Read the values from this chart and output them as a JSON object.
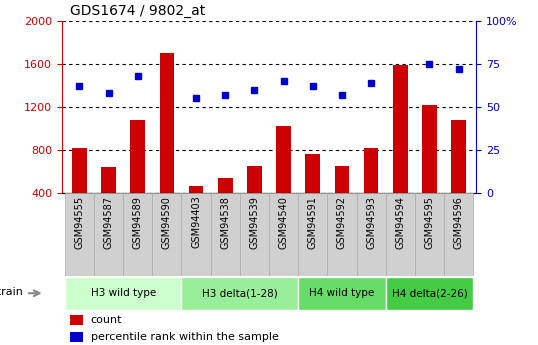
{
  "title": "GDS1674 / 9802_at",
  "samples": [
    "GSM94555",
    "GSM94587",
    "GSM94589",
    "GSM94590",
    "GSM94403",
    "GSM94538",
    "GSM94539",
    "GSM94540",
    "GSM94591",
    "GSM94592",
    "GSM94593",
    "GSM94594",
    "GSM94595",
    "GSM94596"
  ],
  "counts": [
    820,
    640,
    1080,
    1700,
    470,
    540,
    650,
    1020,
    760,
    650,
    820,
    1590,
    1220,
    1080
  ],
  "pct_right": [
    62,
    58,
    68,
    null,
    55,
    57,
    60,
    65,
    62,
    57,
    64,
    null,
    75,
    72
  ],
  "bar_color": "#cc0000",
  "dot_color": "#0000cc",
  "ylim_left": [
    400,
    2000
  ],
  "ylim_right": [
    0,
    100
  ],
  "yticks_left": [
    400,
    800,
    1200,
    1600,
    2000
  ],
  "yticks_right": [
    0,
    25,
    50,
    75,
    100
  ],
  "group_info": [
    {
      "label": "H3 wild type",
      "indices": [
        0,
        1,
        2,
        3
      ],
      "color": "#ccffcc"
    },
    {
      "label": "H3 delta(1-28)",
      "indices": [
        4,
        5,
        6,
        7
      ],
      "color": "#99ee99"
    },
    {
      "label": "H4 wild type",
      "indices": [
        8,
        9,
        10
      ],
      "color": "#66dd66"
    },
    {
      "label": "H4 delta(2-26)",
      "indices": [
        11,
        12,
        13
      ],
      "color": "#44cc44"
    }
  ],
  "tick_bg_color": "#d0d0d0",
  "tick_border_color": "#aaaaaa",
  "strain_label": "strain",
  "legend_count_label": "count",
  "legend_pct_label": "percentile rank within the sample",
  "bar_width": 0.5
}
